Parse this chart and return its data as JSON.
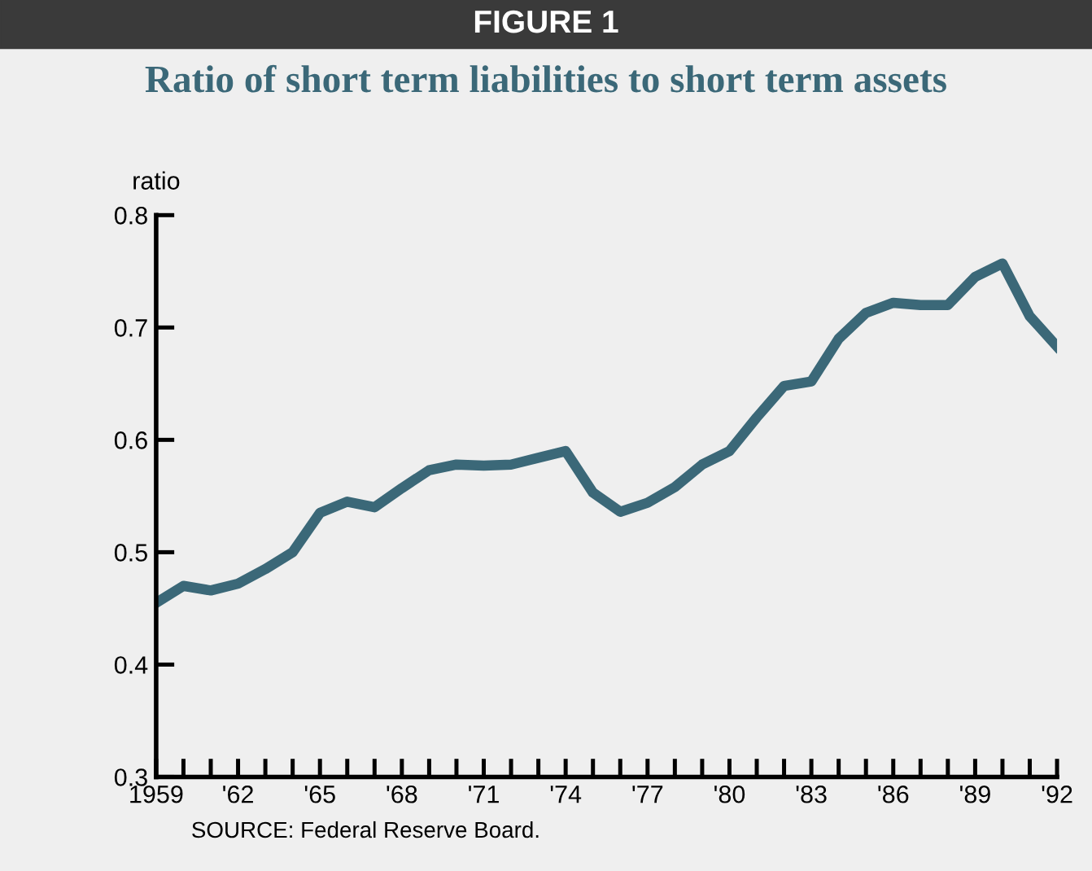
{
  "chart_data": {
    "type": "line",
    "title": "FIGURE 1",
    "subtitle": "Ratio of short term liabilities to short term assets",
    "ylabel": "ratio",
    "x": [
      1959,
      1960,
      1961,
      1962,
      1963,
      1964,
      1965,
      1966,
      1967,
      1968,
      1969,
      1970,
      1971,
      1972,
      1973,
      1974,
      1975,
      1976,
      1977,
      1978,
      1979,
      1980,
      1981,
      1982,
      1983,
      1984,
      1985,
      1986,
      1987,
      1988,
      1989,
      1990,
      1991,
      1992
    ],
    "series": [
      {
        "color": "#3b6878",
        "values": [
          0.455,
          0.47,
          0.466,
          0.472,
          0.485,
          0.5,
          0.535,
          0.545,
          0.54,
          0.557,
          0.573,
          0.578,
          0.577,
          0.578,
          0.584,
          0.59,
          0.553,
          0.536,
          0.544,
          0.558,
          0.578,
          0.59,
          0.62,
          0.648,
          0.652,
          0.69,
          0.713,
          0.722,
          0.72,
          0.72,
          0.745,
          0.757,
          0.71,
          0.683
        ]
      }
    ],
    "xlim": [
      1959,
      1992
    ],
    "xticks": [
      {
        "value": 1959,
        "label": "1959"
      },
      {
        "value": 1960,
        "label": null
      },
      {
        "value": 1961,
        "label": null
      },
      {
        "value": 1962,
        "label": "'62"
      },
      {
        "value": 1963,
        "label": null
      },
      {
        "value": 1964,
        "label": null
      },
      {
        "value": 1965,
        "label": "'65"
      },
      {
        "value": 1966,
        "label": null
      },
      {
        "value": 1967,
        "label": null
      },
      {
        "value": 1968,
        "label": "'68"
      },
      {
        "value": 1969,
        "label": null
      },
      {
        "value": 1970,
        "label": null
      },
      {
        "value": 1971,
        "label": "'71"
      },
      {
        "value": 1972,
        "label": null
      },
      {
        "value": 1973,
        "label": null
      },
      {
        "value": 1974,
        "label": "'74"
      },
      {
        "value": 1975,
        "label": null
      },
      {
        "value": 1976,
        "label": null
      },
      {
        "value": 1977,
        "label": "'77"
      },
      {
        "value": 1978,
        "label": null
      },
      {
        "value": 1979,
        "label": null
      },
      {
        "value": 1980,
        "label": "'80"
      },
      {
        "value": 1981,
        "label": null
      },
      {
        "value": 1982,
        "label": null
      },
      {
        "value": 1983,
        "label": "'83"
      },
      {
        "value": 1984,
        "label": null
      },
      {
        "value": 1985,
        "label": null
      },
      {
        "value": 1986,
        "label": "'86"
      },
      {
        "value": 1987,
        "label": null
      },
      {
        "value": 1988,
        "label": null
      },
      {
        "value": 1989,
        "label": "'89"
      },
      {
        "value": 1990,
        "label": null
      },
      {
        "value": 1991,
        "label": null
      },
      {
        "value": 1992,
        "label": "'92"
      }
    ],
    "ylim": [
      0.3,
      0.8
    ],
    "yticks": [
      {
        "value": 0.3,
        "label": "0.3"
      },
      {
        "value": 0.4,
        "label": "0.4"
      },
      {
        "value": 0.5,
        "label": "0.5"
      },
      {
        "value": 0.6,
        "label": "0.6"
      },
      {
        "value": 0.7,
        "label": "0.7"
      },
      {
        "value": 0.8,
        "label": "0.8"
      }
    ],
    "grid": false,
    "legend": false,
    "line_style": "solid",
    "marker": "none",
    "annotations": [
      "SOURCE: Federal Reserve Board."
    ]
  }
}
